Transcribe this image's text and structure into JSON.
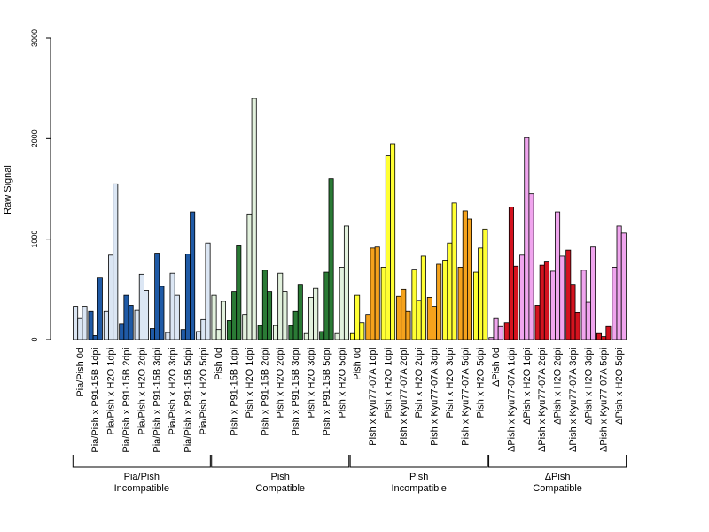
{
  "chart_data": {
    "type": "bar",
    "title": "",
    "ylabel": "Raw Signal",
    "xlabel": "",
    "ylim": [
      0,
      3000
    ],
    "yticks": [
      0,
      1000,
      2000,
      3000
    ],
    "grid": false,
    "legend": "none",
    "bar_edge_color": "#000000",
    "categories": [
      {
        "label": "Pia/Pish 0d",
        "values": [
          330,
          210,
          330
        ],
        "colors": [
          "#dbe6f4",
          "#dbe6f4",
          "#dbe6f4"
        ]
      },
      {
        "label": "Pia/Pish x P91-15B 1dpi",
        "values": [
          280,
          40,
          620
        ],
        "colors": [
          "#1f5aa6",
          "#1f5aa6",
          "#1f5aa6"
        ]
      },
      {
        "label": "Pia/Pish x H2O 1dpi",
        "values": [
          280,
          840,
          1550
        ],
        "colors": [
          "#dbe6f4",
          "#dbe6f4",
          "#dbe6f4"
        ]
      },
      {
        "label": "Pia/Pish x P91-15B 2dpi",
        "values": [
          160,
          440,
          340
        ],
        "colors": [
          "#1f5aa6",
          "#1f5aa6",
          "#1f5aa6"
        ]
      },
      {
        "label": "Pia/Pish x H2O 2dpi",
        "values": [
          290,
          650,
          490
        ],
        "colors": [
          "#dbe6f4",
          "#dbe6f4",
          "#dbe6f4"
        ]
      },
      {
        "label": "Pia/Pish x P91-15B 3dpi",
        "values": [
          110,
          860,
          530
        ],
        "colors": [
          "#1f5aa6",
          "#1f5aa6",
          "#1f5aa6"
        ]
      },
      {
        "label": "Pia/Pish x H2O 3dpi",
        "values": [
          70,
          660,
          440
        ],
        "colors": [
          "#dbe6f4",
          "#dbe6f4",
          "#dbe6f4"
        ]
      },
      {
        "label": "Pia/Pish x P91-15B 5dpi",
        "values": [
          100,
          850,
          1270
        ],
        "colors": [
          "#1f5aa6",
          "#1f5aa6",
          "#1f5aa6"
        ]
      },
      {
        "label": "Pia/Pish x H2O 5dpi",
        "values": [
          80,
          200,
          960
        ],
        "colors": [
          "#dbe6f4",
          "#dbe6f4",
          "#dbe6f4"
        ]
      },
      {
        "label": "Pish 0d",
        "values": [
          440,
          100,
          380
        ],
        "colors": [
          "#e2f1dd",
          "#e2f1dd",
          "#e2f1dd"
        ]
      },
      {
        "label": "Pish x P91-15B 1dpi",
        "values": [
          190,
          480,
          940
        ],
        "colors": [
          "#2a7a35",
          "#2a7a35",
          "#2a7a35"
        ]
      },
      {
        "label": "Pish x H2O 1dpi",
        "values": [
          250,
          1250,
          2400
        ],
        "colors": [
          "#e2f1dd",
          "#e2f1dd",
          "#e2f1dd"
        ]
      },
      {
        "label": "Pish x P91-15B 2dpi",
        "values": [
          140,
          690,
          480
        ],
        "colors": [
          "#2a7a35",
          "#2a7a35",
          "#2a7a35"
        ]
      },
      {
        "label": "Pish x H2O 2dpi",
        "values": [
          140,
          660,
          480
        ],
        "colors": [
          "#e2f1dd",
          "#e2f1dd",
          "#e2f1dd"
        ]
      },
      {
        "label": "Pish x P91-15B 3dpi",
        "values": [
          140,
          280,
          550
        ],
        "colors": [
          "#2a7a35",
          "#2a7a35",
          "#2a7a35"
        ]
      },
      {
        "label": "Pish x H2O 3dpi",
        "values": [
          60,
          420,
          510
        ],
        "colors": [
          "#e2f1dd",
          "#e2f1dd",
          "#e2f1dd"
        ]
      },
      {
        "label": "Pish x P91-15B 5dpi",
        "values": [
          80,
          670,
          1600
        ],
        "colors": [
          "#2a7a35",
          "#2a7a35",
          "#2a7a35"
        ]
      },
      {
        "label": "Pish x H2O 5dpi",
        "values": [
          60,
          720,
          1130
        ],
        "colors": [
          "#e2f1dd",
          "#e2f1dd",
          "#e2f1dd"
        ]
      },
      {
        "label": "Pish 0d",
        "values": [
          60,
          440,
          170
        ],
        "colors": [
          "#ffff33",
          "#ffff33",
          "#ffff33"
        ]
      },
      {
        "label": "Pish x Kyu77-07A 1dpi",
        "values": [
          250,
          910,
          920
        ],
        "colors": [
          "#f5a21c",
          "#f5a21c",
          "#f5a21c"
        ]
      },
      {
        "label": "Pish x H2O 1dpi",
        "values": [
          720,
          1830,
          1950
        ],
        "colors": [
          "#ffff33",
          "#ffff33",
          "#ffff33"
        ]
      },
      {
        "label": "Pish x Kyu77-07A 2dpi",
        "values": [
          430,
          500,
          280
        ],
        "colors": [
          "#f5a21c",
          "#f5a21c",
          "#f5a21c"
        ]
      },
      {
        "label": "Pish x H2O 2dpi",
        "values": [
          700,
          390,
          830
        ],
        "colors": [
          "#ffff33",
          "#ffff33",
          "#ffff33"
        ]
      },
      {
        "label": "Pish x Kyu77-07A 3dpi",
        "values": [
          420,
          330,
          750
        ],
        "colors": [
          "#f5a21c",
          "#f5a21c",
          "#f5a21c"
        ]
      },
      {
        "label": "Pish x H2O 3dpi",
        "values": [
          790,
          960,
          1360
        ],
        "colors": [
          "#ffff33",
          "#ffff33",
          "#ffff33"
        ]
      },
      {
        "label": "Pish x Kyu77-07A 5dpi",
        "values": [
          720,
          1280,
          1200
        ],
        "colors": [
          "#f5a21c",
          "#f5a21c",
          "#f5a21c"
        ]
      },
      {
        "label": "Pish x H2O 5dpi",
        "values": [
          670,
          910,
          1100
        ],
        "colors": [
          "#ffff33",
          "#ffff33",
          "#ffff33"
        ]
      },
      {
        "label": "ΔPish 0d",
        "values": [
          20,
          210,
          130
        ],
        "colors": [
          "#f0a5ee",
          "#f0a5ee",
          "#f0a5ee"
        ]
      },
      {
        "label": "ΔPish x Kyu77-07A 1dpi",
        "values": [
          170,
          1320,
          730
        ],
        "colors": [
          "#d4131f",
          "#d4131f",
          "#d4131f"
        ]
      },
      {
        "label": "ΔPish x H2O 1dpi",
        "values": [
          840,
          2010,
          1450
        ],
        "colors": [
          "#f0a5ee",
          "#f0a5ee",
          "#f0a5ee"
        ]
      },
      {
        "label": "ΔPish x Kyu77-07A 2dpi",
        "values": [
          340,
          740,
          780
        ],
        "colors": [
          "#d4131f",
          "#d4131f",
          "#d4131f"
        ]
      },
      {
        "label": "ΔPish x H2O 2dpi",
        "values": [
          680,
          1270,
          830
        ],
        "colors": [
          "#f0a5ee",
          "#f0a5ee",
          "#f0a5ee"
        ]
      },
      {
        "label": "ΔPish x Kyu77-07A 3dpi",
        "values": [
          890,
          550,
          270
        ],
        "colors": [
          "#d4131f",
          "#d4131f",
          "#d4131f"
        ]
      },
      {
        "label": "ΔPish x H2O 3dpi",
        "values": [
          690,
          370,
          920
        ],
        "colors": [
          "#f0a5ee",
          "#f0a5ee",
          "#f0a5ee"
        ]
      },
      {
        "label": "ΔPish x Kyu77-07A 5dpi",
        "values": [
          60,
          30,
          130
        ],
        "colors": [
          "#d4131f",
          "#d4131f",
          "#d4131f"
        ]
      },
      {
        "label": "ΔPish x H2O 5dpi",
        "values": [
          720,
          1130,
          1060
        ],
        "colors": [
          "#f0a5ee",
          "#f0a5ee",
          "#f0a5ee"
        ]
      }
    ],
    "groups": [
      {
        "line1": "Pia/Pish",
        "line2": "Incompatible",
        "start": 0,
        "end": 8
      },
      {
        "line1": "Pish",
        "line2": "Compatible",
        "start": 9,
        "end": 17
      },
      {
        "line1": "Pish",
        "line2": "Incompatible",
        "start": 18,
        "end": 26
      },
      {
        "line1": "ΔPish",
        "line2": "Compatible",
        "start": 27,
        "end": 35
      }
    ]
  }
}
